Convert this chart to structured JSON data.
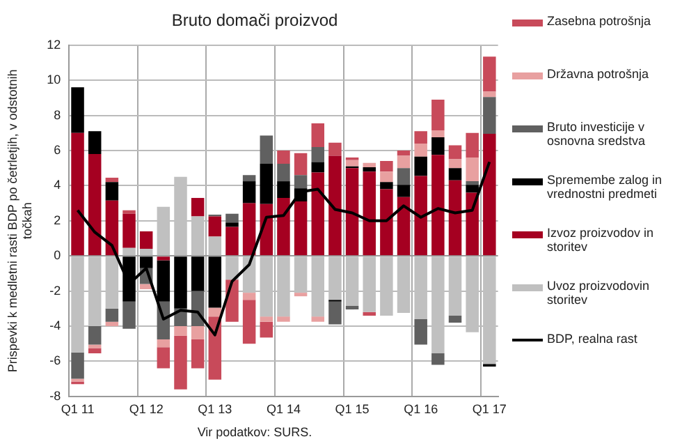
{
  "chart_data": {
    "type": "bar",
    "title": "Bruto domači proizvod",
    "ylabel": "Prispevki k medletni rasti BDP po četrletjih, v odstotnih točkah",
    "annotations": [
      "Vir podatkov: SURS."
    ],
    "categories": [
      "Q1 11",
      null,
      null,
      null,
      "Q1 12",
      null,
      null,
      null,
      "Q1 13",
      null,
      null,
      null,
      "Q1 14",
      null,
      null,
      null,
      "Q1 15",
      null,
      null,
      null,
      "Q1 16",
      null,
      null,
      null,
      "Q1 17"
    ],
    "stacked": true,
    "ylim": [
      -8,
      12
    ],
    "yticks": [
      -8,
      -6,
      -4,
      -2,
      0,
      2,
      4,
      6,
      8,
      10,
      12
    ],
    "grid": true,
    "legend": "right",
    "series": [
      {
        "name": "BDP, realna rast",
        "type": "line",
        "marker": "none",
        "color": "#000000",
        "values": [
          2.6,
          1.35,
          0.6,
          -1.6,
          -0.7,
          -3.6,
          -3.1,
          -3.2,
          -4.5,
          -1.45,
          -0.5,
          2.2,
          2.3,
          3.65,
          3.8,
          2.65,
          2.45,
          2.0,
          2.0,
          2.85,
          2.2,
          2.7,
          2.45,
          2.6,
          5.35
        ]
      },
      {
        "name": "Uvoz proizvodovin storitev",
        "color": "#c0c0c0",
        "values": [
          -5.5,
          -4.0,
          -3.0,
          0.45,
          0.4,
          2.8,
          4.5,
          2.25,
          1.1,
          -1.35,
          -2.1,
          -3.45,
          -3.45,
          -2.1,
          -3.45,
          -2.5,
          -2.85,
          -3.2,
          -3.4,
          -3.25,
          -3.6,
          -5.55,
          -3.4,
          -4.35,
          -6.15
        ]
      },
      {
        "name": "Izvoz proizvodov in storitev",
        "color": "#a50021",
        "values": [
          7.0,
          5.8,
          3.15,
          1.95,
          1.0,
          -0.25,
          null,
          1.05,
          1.15,
          1.65,
          3.0,
          2.95,
          3.3,
          3.1,
          4.75,
          5.7,
          5.0,
          4.8,
          3.8,
          3.35,
          4.55,
          5.75,
          4.3,
          3.6,
          6.95
        ]
      },
      {
        "name": "Spremembe zalog in vrednostni predmeti",
        "color": "#000000",
        "values": [
          2.6,
          1.3,
          1.05,
          -2.6,
          -0.7,
          -2.35,
          -3.0,
          -2.0,
          -2.95,
          0.25,
          1.25,
          2.3,
          0.95,
          0.75,
          0.6,
          -0.1,
          0.1,
          0.25,
          0.4,
          0.7,
          1.1,
          1.0,
          0.7,
          0.45,
          -0.15
        ]
      },
      {
        "name": "Bruto investicije v osnovna sredstva",
        "color": "#606060",
        "values": [
          -1.5,
          -1.05,
          -0.75,
          -1.55,
          -0.9,
          -2.15,
          -1.0,
          -2.0,
          0.1,
          0.5,
          0.35,
          1.6,
          1.0,
          0.75,
          0.85,
          -1.3,
          -0.2,
          null,
          null,
          0.95,
          -1.45,
          -0.65,
          -0.4,
          0.2,
          2.1
        ]
      },
      {
        "name": "Državna potrošnja",
        "color": "#e8a0a0",
        "values": [
          -0.15,
          -0.2,
          -0.25,
          null,
          -0.3,
          -0.45,
          -0.55,
          -0.75,
          -0.5,
          null,
          -0.4,
          -0.3,
          -0.3,
          -0.2,
          -0.3,
          null,
          0.35,
          0.25,
          0.6,
          0.7,
          0.75,
          0.4,
          0.5,
          1.35,
          0.3
        ]
      },
      {
        "name": "Zasebna potrošnja",
        "color": "#c84a5a",
        "values": [
          -0.15,
          -0.3,
          0.25,
          0.2,
          null,
          -1.2,
          -3.05,
          -1.65,
          -3.6,
          -2.4,
          -2.5,
          -0.9,
          0.75,
          1.25,
          1.35,
          0.75,
          0.15,
          -0.2,
          0.6,
          0.3,
          0.7,
          1.75,
          0.8,
          1.4,
          2.0
        ]
      }
    ]
  }
}
